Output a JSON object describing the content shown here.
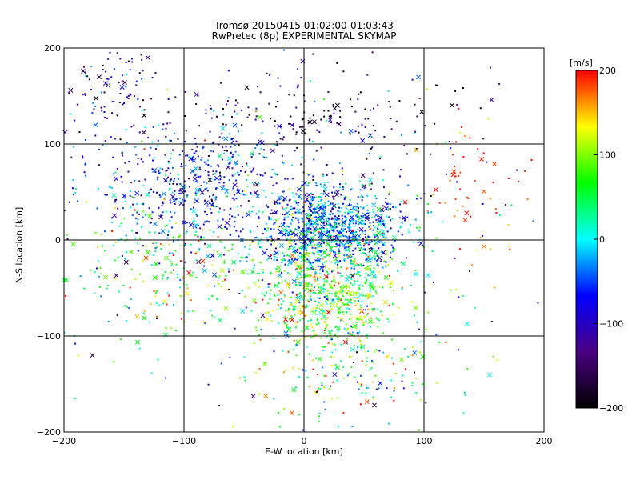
{
  "chart_data": {
    "type": "scatter",
    "title": "Tromsø 20150415 01:02:00-01:03:43",
    "subtitle": "RwPretec (8p) EXPERIMENTAL SKYMAP",
    "xlabel": "E-W location [km]",
    "ylabel": "N-S location [km]",
    "xlim": [
      -200,
      200
    ],
    "ylim": [
      -200,
      200
    ],
    "xticks": [
      -200,
      -100,
      0,
      100,
      200
    ],
    "yticks": [
      -200,
      -100,
      0,
      100,
      200
    ],
    "grid": true,
    "marker_styles": [
      "cross",
      "dot"
    ],
    "colorbar": {
      "label": "[m/s]",
      "range": [
        -200,
        200
      ],
      "ticks": [
        -200,
        -100,
        0,
        100,
        200
      ],
      "colors": [
        "#000000",
        "#4b0082",
        "#0000ff",
        "#00ffff",
        "#00ff00",
        "#ffff00",
        "#ff0000"
      ]
    },
    "point_count_estimate": 3000,
    "clusters": [
      {
        "x": 25,
        "y": 10,
        "sx": 28,
        "sy": 22,
        "v": -40,
        "sv": 50,
        "n": 900
      },
      {
        "x": 20,
        "y": -55,
        "sx": 30,
        "sy": 35,
        "v": 80,
        "sv": 55,
        "n": 700
      },
      {
        "x": -90,
        "y": 60,
        "sx": 50,
        "sy": 35,
        "v": -70,
        "sv": 50,
        "n": 500
      },
      {
        "x": -100,
        "y": -20,
        "sx": 55,
        "sy": 35,
        "v": 50,
        "sv": 70,
        "n": 300
      },
      {
        "x": 0,
        "y": 120,
        "sx": 70,
        "sy": 30,
        "v": -160,
        "sv": 60,
        "n": 220
      },
      {
        "x": -160,
        "y": 160,
        "sx": 20,
        "sy": 20,
        "v": -120,
        "sv": 60,
        "n": 90
      },
      {
        "x": 140,
        "y": 60,
        "sx": 25,
        "sy": 40,
        "v": 180,
        "sv": 25,
        "n": 60
      },
      {
        "x": 30,
        "y": -140,
        "sx": 45,
        "sy": 30,
        "v": 40,
        "sv": 90,
        "n": 160
      },
      {
        "x": 0,
        "y": 0,
        "sx": 120,
        "sy": 110,
        "v": 0,
        "sv": 110,
        "n": 250
      }
    ]
  }
}
